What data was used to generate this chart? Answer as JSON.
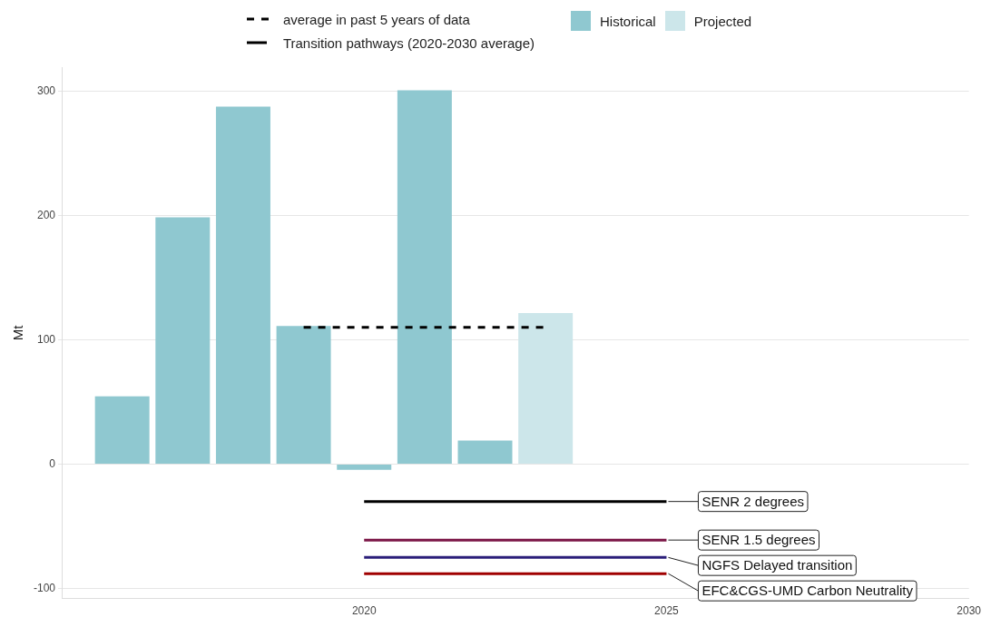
{
  "chart_data": {
    "type": "bar",
    "ylabel": "Mt",
    "xlim": [
      2015,
      2030
    ],
    "xticks": [
      2020,
      2025,
      2030
    ],
    "ylim": [
      -108,
      319
    ],
    "yticks": [
      -100,
      0,
      100,
      200,
      300
    ],
    "grid": "y",
    "legend": "top",
    "annotations": [
      "Transition pathways (2020-2030 average)"
    ],
    "series": [
      {
        "name": "Historical",
        "color": "#8fc8d0",
        "x": [
          2016,
          2017,
          2018,
          2019,
          2020,
          2021,
          2022
        ],
        "values": [
          54.5,
          198.5,
          287.5,
          111,
          -4.5,
          300.5,
          19
        ]
      },
      {
        "name": "Projected",
        "color": "#cce6ea",
        "x": [
          2023
        ],
        "values": [
          121.5
        ]
      },
      {
        "name": "average in past 5 years of data",
        "type": "line",
        "line_style": "dashed",
        "color": "#000000",
        "x": [
          2019,
          2023
        ],
        "values": [
          110,
          110
        ]
      },
      {
        "name": "SENR 2 degrees",
        "type": "line",
        "line_style": "solid",
        "color": "#000000",
        "x": [
          2020,
          2025
        ],
        "values": [
          -30,
          -30
        ]
      },
      {
        "name": "SENR 1.5 degrees",
        "type": "line",
        "line_style": "solid",
        "color": "#7b1646",
        "x": [
          2020,
          2025
        ],
        "values": [
          -61,
          -61
        ]
      },
      {
        "name": "NGFS Delayed transition",
        "type": "line",
        "line_style": "solid",
        "color": "#2b1f7a",
        "x": [
          2020,
          2025
        ],
        "values": [
          -75,
          -75
        ]
      },
      {
        "name": "EFC&CGS-UMD Carbon Neutrality",
        "type": "line",
        "line_style": "solid",
        "color": "#a00000",
        "x": [
          2020,
          2025
        ],
        "values": [
          -88,
          -88
        ]
      }
    ]
  }
}
